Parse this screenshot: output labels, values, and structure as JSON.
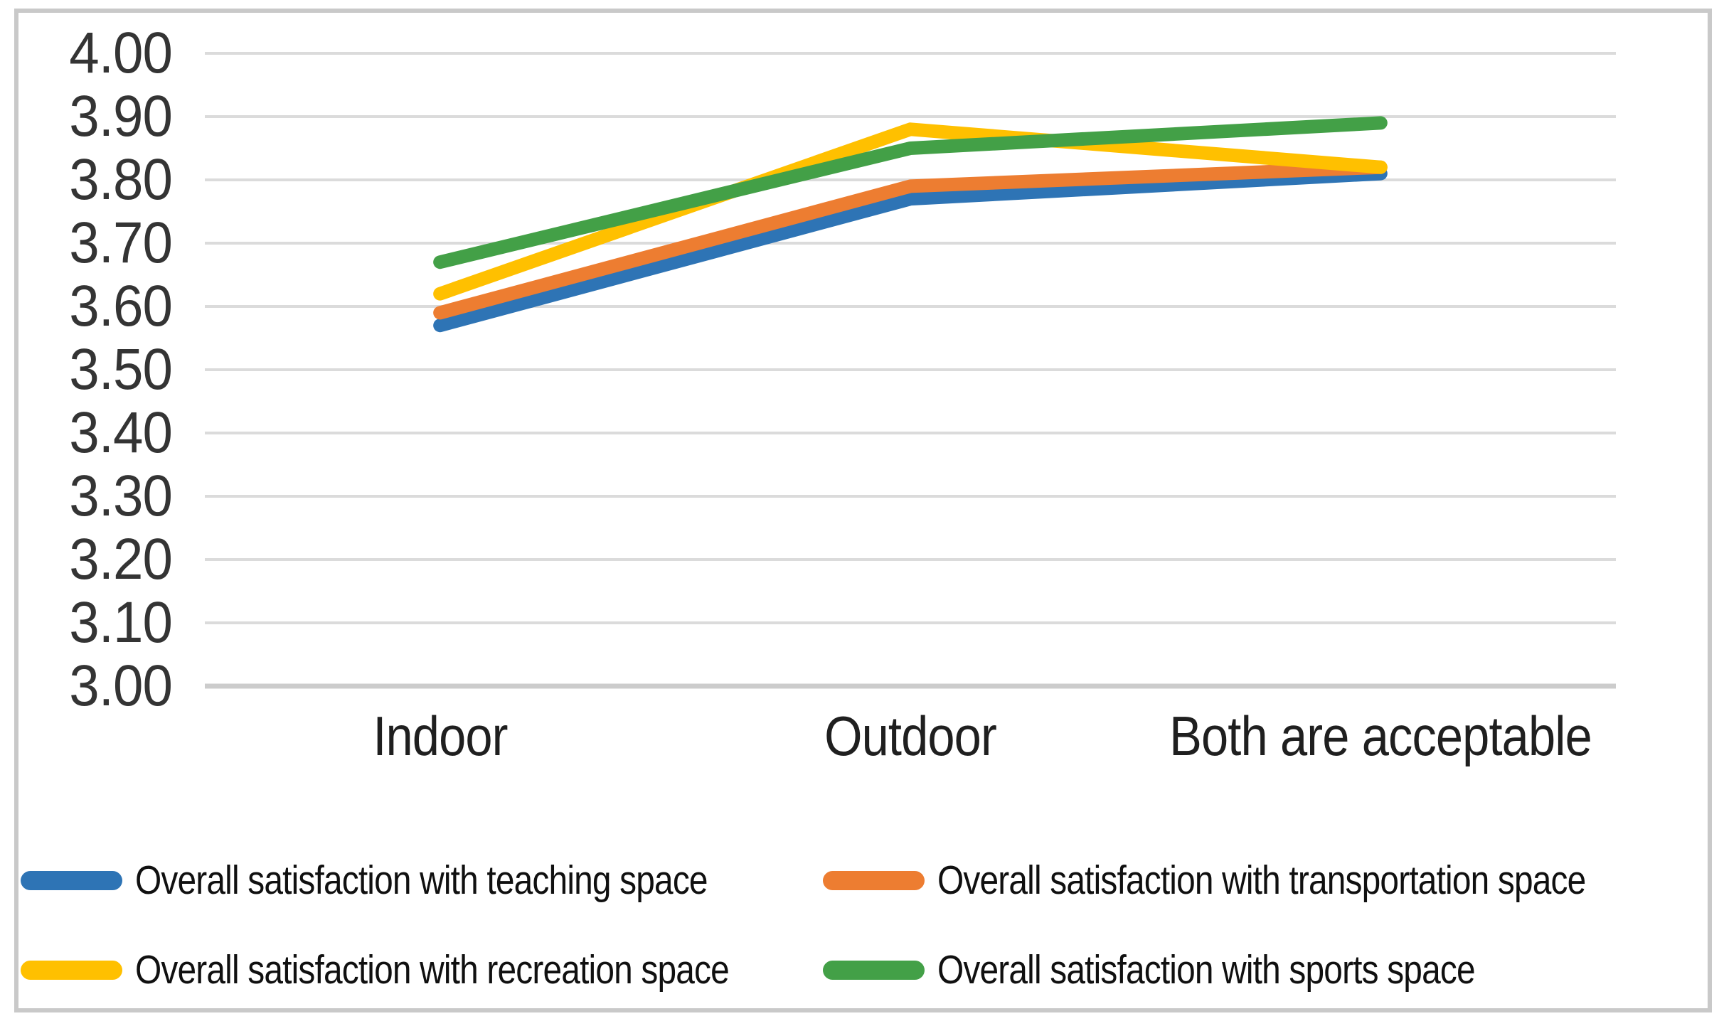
{
  "chart_data": {
    "type": "line",
    "categories": [
      "Indoor",
      "Outdoor",
      "Both are acceptable"
    ],
    "series": [
      {
        "name": "Overall satisfaction with teaching space",
        "color": "#2e74b5",
        "values": [
          3.57,
          3.77,
          3.81
        ]
      },
      {
        "name": "Overall satisfaction with transportation space",
        "color": "#ed7d31",
        "values": [
          3.59,
          3.79,
          3.82
        ]
      },
      {
        "name": "Overall satisfaction with recreation space",
        "color": "#ffc000",
        "values": [
          3.62,
          3.88,
          3.82
        ]
      },
      {
        "name": "Overall satisfaction with sports space",
        "color": "#43a047",
        "values": [
          3.67,
          3.85,
          3.89
        ]
      }
    ],
    "title": "",
    "xlabel": "",
    "ylabel": "",
    "ylim": [
      3.0,
      4.0
    ],
    "ytick_step": 0.1,
    "yticks": [
      "4.00",
      "3.90",
      "3.80",
      "3.70",
      "3.60",
      "3.50",
      "3.40",
      "3.30",
      "3.20",
      "3.10",
      "3.00"
    ],
    "grid": true,
    "legend_position": "bottom",
    "legend_columns": 2
  },
  "styles": {
    "gridline_color": "#dbdbdb",
    "axis_line_color": "#cccccc",
    "tick_text_color": "#343434",
    "category_text_color": "#1f1f1f",
    "legend_text_color": "#101010",
    "frame_border_color": "#c9c9c9",
    "background_color": "#ffffff"
  }
}
